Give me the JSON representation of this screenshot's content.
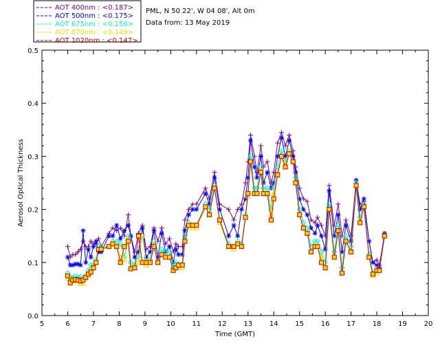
{
  "header": {
    "station": "PML, N 50 22', W 04 08', Alt 0m",
    "date": "Data from: 13 May 2019"
  },
  "chart_data": {
    "type": "scatter",
    "xlabel": "Time (GMT)",
    "ylabel": "Aerosol Optical Thickness",
    "xlim": [
      5,
      20
    ],
    "ylim": [
      0.0,
      0.5
    ],
    "xticks": [
      5,
      6,
      7,
      8,
      9,
      10,
      11,
      12,
      13,
      14,
      15,
      16,
      17,
      18,
      19,
      20
    ],
    "xtick_labels": [
      "5",
      "6",
      "7",
      "8",
      "9",
      "10",
      "11",
      "12",
      "13",
      "14",
      "15",
      "16",
      "17",
      "18",
      "19",
      "20"
    ],
    "yticks": [
      0.0,
      0.1,
      0.2,
      0.3,
      0.4,
      0.5
    ],
    "ytick_labels": [
      "0.0",
      "0.1",
      "0.2",
      "0.3",
      "0.4",
      "0.5"
    ],
    "legend_position": "top-left, outside plot",
    "x": [
      6.0,
      6.1,
      6.2,
      6.3,
      6.4,
      6.5,
      6.6,
      6.7,
      6.8,
      6.9,
      7.0,
      7.1,
      7.2,
      7.3,
      7.6,
      7.75,
      7.9,
      8.05,
      8.2,
      8.35,
      8.45,
      8.6,
      8.75,
      8.9,
      9.05,
      9.2,
      9.35,
      9.5,
      9.65,
      9.8,
      9.95,
      10.1,
      10.2,
      10.3,
      10.45,
      10.55,
      10.7,
      10.85,
      11.0,
      11.35,
      11.5,
      11.7,
      11.9,
      12.25,
      12.45,
      12.6,
      12.75,
      12.9,
      13.0,
      13.1,
      13.25,
      13.35,
      13.5,
      13.6,
      13.75,
      13.9,
      14.0,
      14.15,
      14.3,
      14.45,
      14.6,
      14.75,
      14.85,
      15.0,
      15.15,
      15.3,
      15.45,
      15.6,
      15.7,
      15.85,
      16.0,
      16.15,
      16.35,
      16.5,
      16.65,
      16.8,
      17.0,
      17.2,
      17.35,
      17.5,
      17.7,
      17.85,
      18.0,
      18.1,
      18.3
    ],
    "series": [
      {
        "name": "AOT  400nm : <0.187>",
        "color": "#800080",
        "marker": "plus",
        "values": [
          0.13,
          0.11,
          0.115,
          0.115,
          0.12,
          0.125,
          0.14,
          0.13,
          0.13,
          0.14,
          0.135,
          0.135,
          0.145,
          0.13,
          0.155,
          0.165,
          0.16,
          0.165,
          0.15,
          0.19,
          0.15,
          0.12,
          0.155,
          0.17,
          0.125,
          0.13,
          0.165,
          0.14,
          0.165,
          0.135,
          0.145,
          0.12,
          0.135,
          0.13,
          0.13,
          0.18,
          0.2,
          0.21,
          0.21,
          0.24,
          0.22,
          0.27,
          0.21,
          0.2,
          0.18,
          0.2,
          0.21,
          0.25,
          0.29,
          0.34,
          0.3,
          0.27,
          0.32,
          0.28,
          0.29,
          0.25,
          0.27,
          0.325,
          0.345,
          0.32,
          0.34,
          0.31,
          0.28,
          0.24,
          0.22,
          0.215,
          0.18,
          0.175,
          0.185,
          0.17,
          0.15,
          0.245,
          0.17,
          0.21,
          0.15,
          0.18,
          0.15,
          0.255,
          0.21,
          0.215,
          0.14,
          0.1,
          0.105,
          0.095,
          0.15
        ]
      },
      {
        "name": "AOT  500nm : <0.175>",
        "color": "#0000ff",
        "marker": "star",
        "values": [
          0.11,
          0.095,
          0.095,
          0.097,
          0.097,
          0.095,
          0.16,
          0.1,
          0.125,
          0.11,
          0.13,
          0.14,
          0.12,
          0.12,
          0.15,
          0.15,
          0.17,
          0.145,
          0.16,
          0.17,
          0.15,
          0.11,
          0.12,
          0.165,
          0.11,
          0.12,
          0.16,
          0.11,
          0.155,
          0.12,
          0.13,
          0.1,
          0.125,
          0.115,
          0.115,
          0.16,
          0.19,
          0.2,
          0.2,
          0.23,
          0.21,
          0.26,
          0.2,
          0.15,
          0.17,
          0.15,
          0.2,
          0.22,
          0.26,
          0.33,
          0.28,
          0.26,
          0.3,
          0.25,
          0.27,
          0.24,
          0.25,
          0.3,
          0.335,
          0.3,
          0.33,
          0.3,
          0.27,
          0.22,
          0.2,
          0.19,
          0.165,
          0.155,
          0.17,
          0.15,
          0.125,
          0.235,
          0.15,
          0.19,
          0.12,
          0.17,
          0.14,
          0.255,
          0.2,
          0.22,
          0.14,
          0.1,
          0.095,
          0.09,
          0.155
        ]
      },
      {
        "name": "AOT  675nm : <0.156>",
        "color": "#00ffaa",
        "marker": "diamond",
        "values": [
          0.08,
          0.072,
          0.072,
          0.074,
          0.072,
          0.073,
          0.07,
          0.075,
          0.085,
          0.095,
          0.095,
          0.105,
          0.13,
          0.13,
          0.13,
          0.14,
          0.14,
          0.135,
          0.11,
          0.15,
          0.1,
          0.095,
          0.11,
          0.15,
          0.1,
          0.105,
          0.14,
          0.1,
          0.125,
          0.12,
          0.12,
          0.092,
          0.1,
          0.097,
          0.097,
          0.15,
          0.175,
          0.17,
          0.17,
          0.21,
          0.2,
          0.245,
          0.18,
          0.135,
          0.13,
          0.14,
          0.135,
          0.19,
          0.23,
          0.3,
          0.24,
          0.24,
          0.28,
          0.24,
          0.24,
          0.2,
          0.24,
          0.28,
          0.31,
          0.29,
          0.31,
          0.29,
          0.26,
          0.2,
          0.175,
          0.165,
          0.13,
          0.14,
          0.14,
          0.12,
          0.1,
          0.21,
          0.12,
          0.17,
          0.09,
          0.15,
          0.13,
          0.25,
          0.185,
          0.21,
          0.115,
          0.08,
          0.085,
          0.085,
          0.15
        ]
      },
      {
        "name": "AOT  870nm : <0.149>",
        "color": "#ffd700",
        "marker": "triangle",
        "values": [
          0.07,
          0.06,
          0.065,
          0.065,
          0.065,
          0.06,
          0.06,
          0.07,
          0.075,
          0.08,
          0.09,
          0.1,
          0.125,
          0.125,
          0.13,
          0.135,
          0.13,
          0.11,
          0.105,
          0.145,
          0.09,
          0.09,
          0.1,
          0.15,
          0.095,
          0.1,
          0.135,
          0.1,
          0.115,
          0.11,
          0.11,
          0.085,
          0.09,
          0.09,
          0.09,
          0.14,
          0.17,
          0.165,
          0.165,
          0.205,
          0.19,
          0.24,
          0.175,
          0.13,
          0.125,
          0.135,
          0.13,
          0.185,
          0.225,
          0.29,
          0.23,
          0.23,
          0.275,
          0.23,
          0.23,
          0.19,
          0.23,
          0.27,
          0.3,
          0.285,
          0.31,
          0.29,
          0.25,
          0.19,
          0.165,
          0.155,
          0.12,
          0.13,
          0.13,
          0.11,
          0.09,
          0.2,
          0.11,
          0.16,
          0.08,
          0.14,
          0.12,
          0.245,
          0.175,
          0.205,
          0.11,
          0.075,
          0.08,
          0.085,
          0.15
        ]
      },
      {
        "name": "AOT 1020nm : <0.147>",
        "color": "#cc0000",
        "marker": "square",
        "values": [
          0.075,
          0.062,
          0.067,
          0.068,
          0.067,
          0.065,
          0.067,
          0.072,
          0.078,
          0.082,
          0.09,
          0.1,
          0.125,
          0.125,
          0.13,
          0.135,
          0.13,
          0.1,
          0.13,
          0.14,
          0.088,
          0.09,
          0.15,
          0.1,
          0.1,
          0.1,
          0.13,
          0.1,
          0.115,
          0.11,
          0.11,
          0.085,
          0.09,
          0.095,
          0.095,
          0.14,
          0.17,
          0.17,
          0.17,
          0.205,
          0.19,
          0.24,
          0.18,
          0.13,
          0.13,
          0.135,
          0.13,
          0.185,
          0.23,
          0.29,
          0.23,
          0.23,
          0.27,
          0.23,
          0.23,
          0.18,
          0.22,
          0.265,
          0.3,
          0.28,
          0.305,
          0.29,
          0.25,
          0.19,
          0.165,
          0.155,
          0.12,
          0.13,
          0.13,
          0.1,
          0.09,
          0.2,
          0.11,
          0.16,
          0.08,
          0.14,
          0.12,
          0.245,
          0.175,
          0.205,
          0.11,
          0.078,
          0.085,
          0.085,
          0.15
        ]
      }
    ]
  }
}
